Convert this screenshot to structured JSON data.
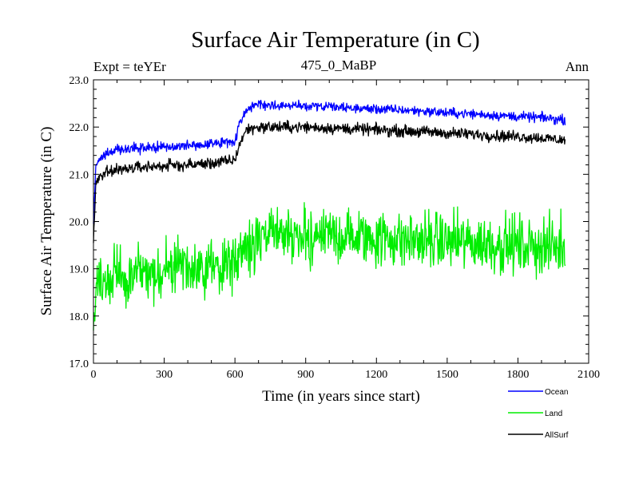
{
  "chart_data": {
    "type": "line",
    "title": "Surface Air Temperature (in C)",
    "subtitle": "475_0_MaBP",
    "left_label": "Expt = teYEr",
    "right_label": "Ann",
    "xlabel": "Time (in years since start)",
    "ylabel": "Surface Air Temperature (in C)",
    "xlim": [
      0,
      2100
    ],
    "ylim": [
      17.0,
      23.0
    ],
    "x_ticks": [
      0,
      300,
      600,
      900,
      1200,
      1500,
      1800,
      2100
    ],
    "x_tick_labels": [
      "0",
      "300",
      "600",
      "900",
      "1200",
      "1500",
      "1800",
      "2100"
    ],
    "y_ticks": [
      17.0,
      18.0,
      19.0,
      20.0,
      21.0,
      22.0,
      23.0
    ],
    "y_tick_labels": [
      "17.0",
      "18.0",
      "19.0",
      "20.0",
      "21.0",
      "22.0",
      "23.0"
    ],
    "grid": false,
    "legend_position": "bottom-right",
    "series": [
      {
        "name": "Ocean",
        "color": "#0000ff",
        "noise": 0.05,
        "x": [
          0,
          10,
          30,
          60,
          100,
          200,
          300,
          400,
          500,
          600,
          620,
          650,
          700,
          800,
          900,
          1000,
          1100,
          1200,
          1300,
          1400,
          1500,
          1600,
          1700,
          1800,
          1900,
          2000
        ],
        "values": [
          19.9,
          21.2,
          21.35,
          21.45,
          21.52,
          21.55,
          21.58,
          21.6,
          21.64,
          21.7,
          22.1,
          22.4,
          22.48,
          22.45,
          22.45,
          22.42,
          22.4,
          22.38,
          22.36,
          22.34,
          22.3,
          22.28,
          22.25,
          22.22,
          22.2,
          22.15
        ]
      },
      {
        "name": "Land",
        "color": "#00ee00",
        "noise": 0.3,
        "x": [
          0,
          10,
          30,
          60,
          100,
          200,
          300,
          400,
          500,
          600,
          620,
          650,
          700,
          800,
          900,
          1000,
          1100,
          1200,
          1300,
          1400,
          1500,
          1600,
          1700,
          1800,
          1900,
          2000
        ],
        "values": [
          17.8,
          18.5,
          18.7,
          18.8,
          18.85,
          18.9,
          18.95,
          19.0,
          19.05,
          19.1,
          19.3,
          19.5,
          19.65,
          19.7,
          19.72,
          19.7,
          19.68,
          19.65,
          19.62,
          19.6,
          19.58,
          19.55,
          19.52,
          19.5,
          19.48,
          19.45
        ]
      },
      {
        "name": "AllSurf",
        "color": "#000000",
        "noise": 0.06,
        "x": [
          0,
          10,
          30,
          60,
          100,
          200,
          300,
          400,
          500,
          600,
          620,
          650,
          700,
          800,
          900,
          1000,
          1100,
          1200,
          1300,
          1400,
          1500,
          1600,
          1700,
          1800,
          1900,
          2000
        ],
        "values": [
          19.6,
          20.8,
          20.95,
          21.05,
          21.1,
          21.15,
          21.18,
          21.2,
          21.23,
          21.3,
          21.65,
          21.95,
          22.0,
          22.0,
          22.0,
          21.98,
          21.96,
          21.94,
          21.92,
          21.9,
          21.87,
          21.85,
          21.82,
          21.8,
          21.77,
          21.72
        ]
      }
    ]
  }
}
